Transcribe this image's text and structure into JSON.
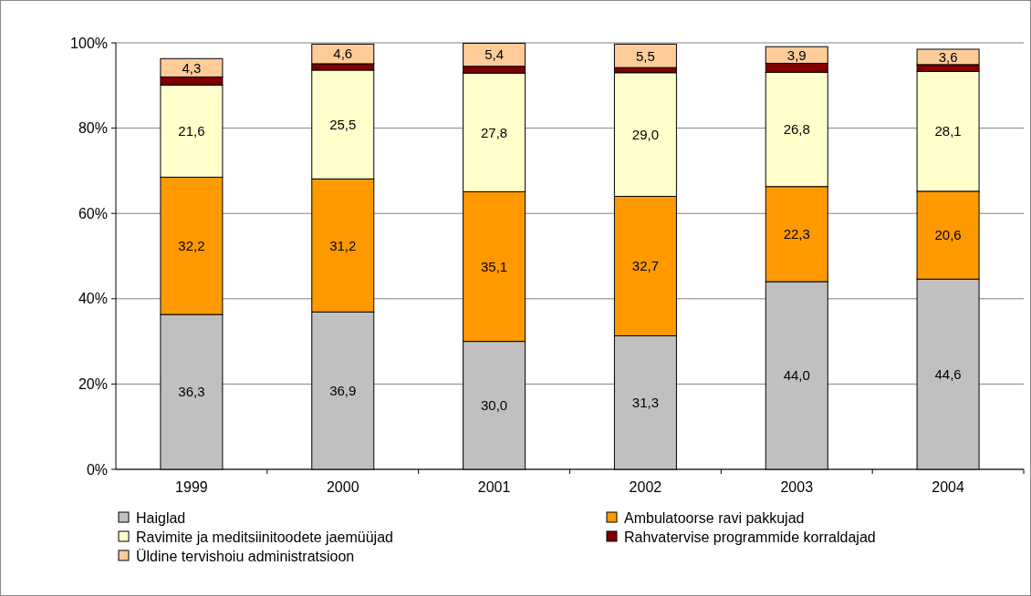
{
  "chart_data": {
    "type": "bar",
    "stacked": true,
    "categories": [
      "1999",
      "2000",
      "2001",
      "2002",
      "2003",
      "2004"
    ],
    "series": [
      {
        "name": "Haiglad",
        "color": "#c0c0c0",
        "values": [
          36.3,
          36.9,
          30.0,
          31.3,
          44.0,
          44.6
        ],
        "value_labels": [
          "36,3",
          "36,9",
          "30,0",
          "31,3",
          "44,0",
          "44,6"
        ]
      },
      {
        "name": "Ambulatoorse ravi pakkujad",
        "color": "#ff9900",
        "values": [
          32.2,
          31.2,
          35.1,
          32.7,
          22.3,
          20.6
        ],
        "value_labels": [
          "32,2",
          "31,2",
          "35,1",
          "32,7",
          "22,3",
          "20,6"
        ]
      },
      {
        "name": "Ravimite ja meditsiinitoodete jaemüüjad",
        "color": "#ffffcc",
        "values": [
          21.6,
          25.5,
          27.8,
          29.0,
          26.8,
          28.1
        ],
        "value_labels": [
          "21,6",
          "25,5",
          "27,8",
          "29,0",
          "26,8",
          "28,1"
        ]
      },
      {
        "name": "Rahvatervise programmide korraldajad",
        "color": "#800000",
        "values": [
          1.9,
          1.5,
          1.6,
          1.2,
          2.1,
          1.6
        ]
      },
      {
        "name": "Üldine tervishoiu administratsioon",
        "color": "#ffcc99",
        "values": [
          4.3,
          4.6,
          5.4,
          5.5,
          3.9,
          3.6
        ],
        "value_labels": [
          "4,3",
          "4,6",
          "5,4",
          "5,5",
          "3,9",
          "3,6"
        ]
      }
    ],
    "ylim": [
      0,
      100
    ],
    "yticks": [
      {
        "value": 0,
        "label": "0%"
      },
      {
        "value": 20,
        "label": "20%"
      },
      {
        "value": 40,
        "label": "40%"
      },
      {
        "value": 60,
        "label": "60%"
      },
      {
        "value": 80,
        "label": "80%"
      },
      {
        "value": 100,
        "label": "100%"
      }
    ],
    "grid": "y",
    "legend": "bottom"
  }
}
